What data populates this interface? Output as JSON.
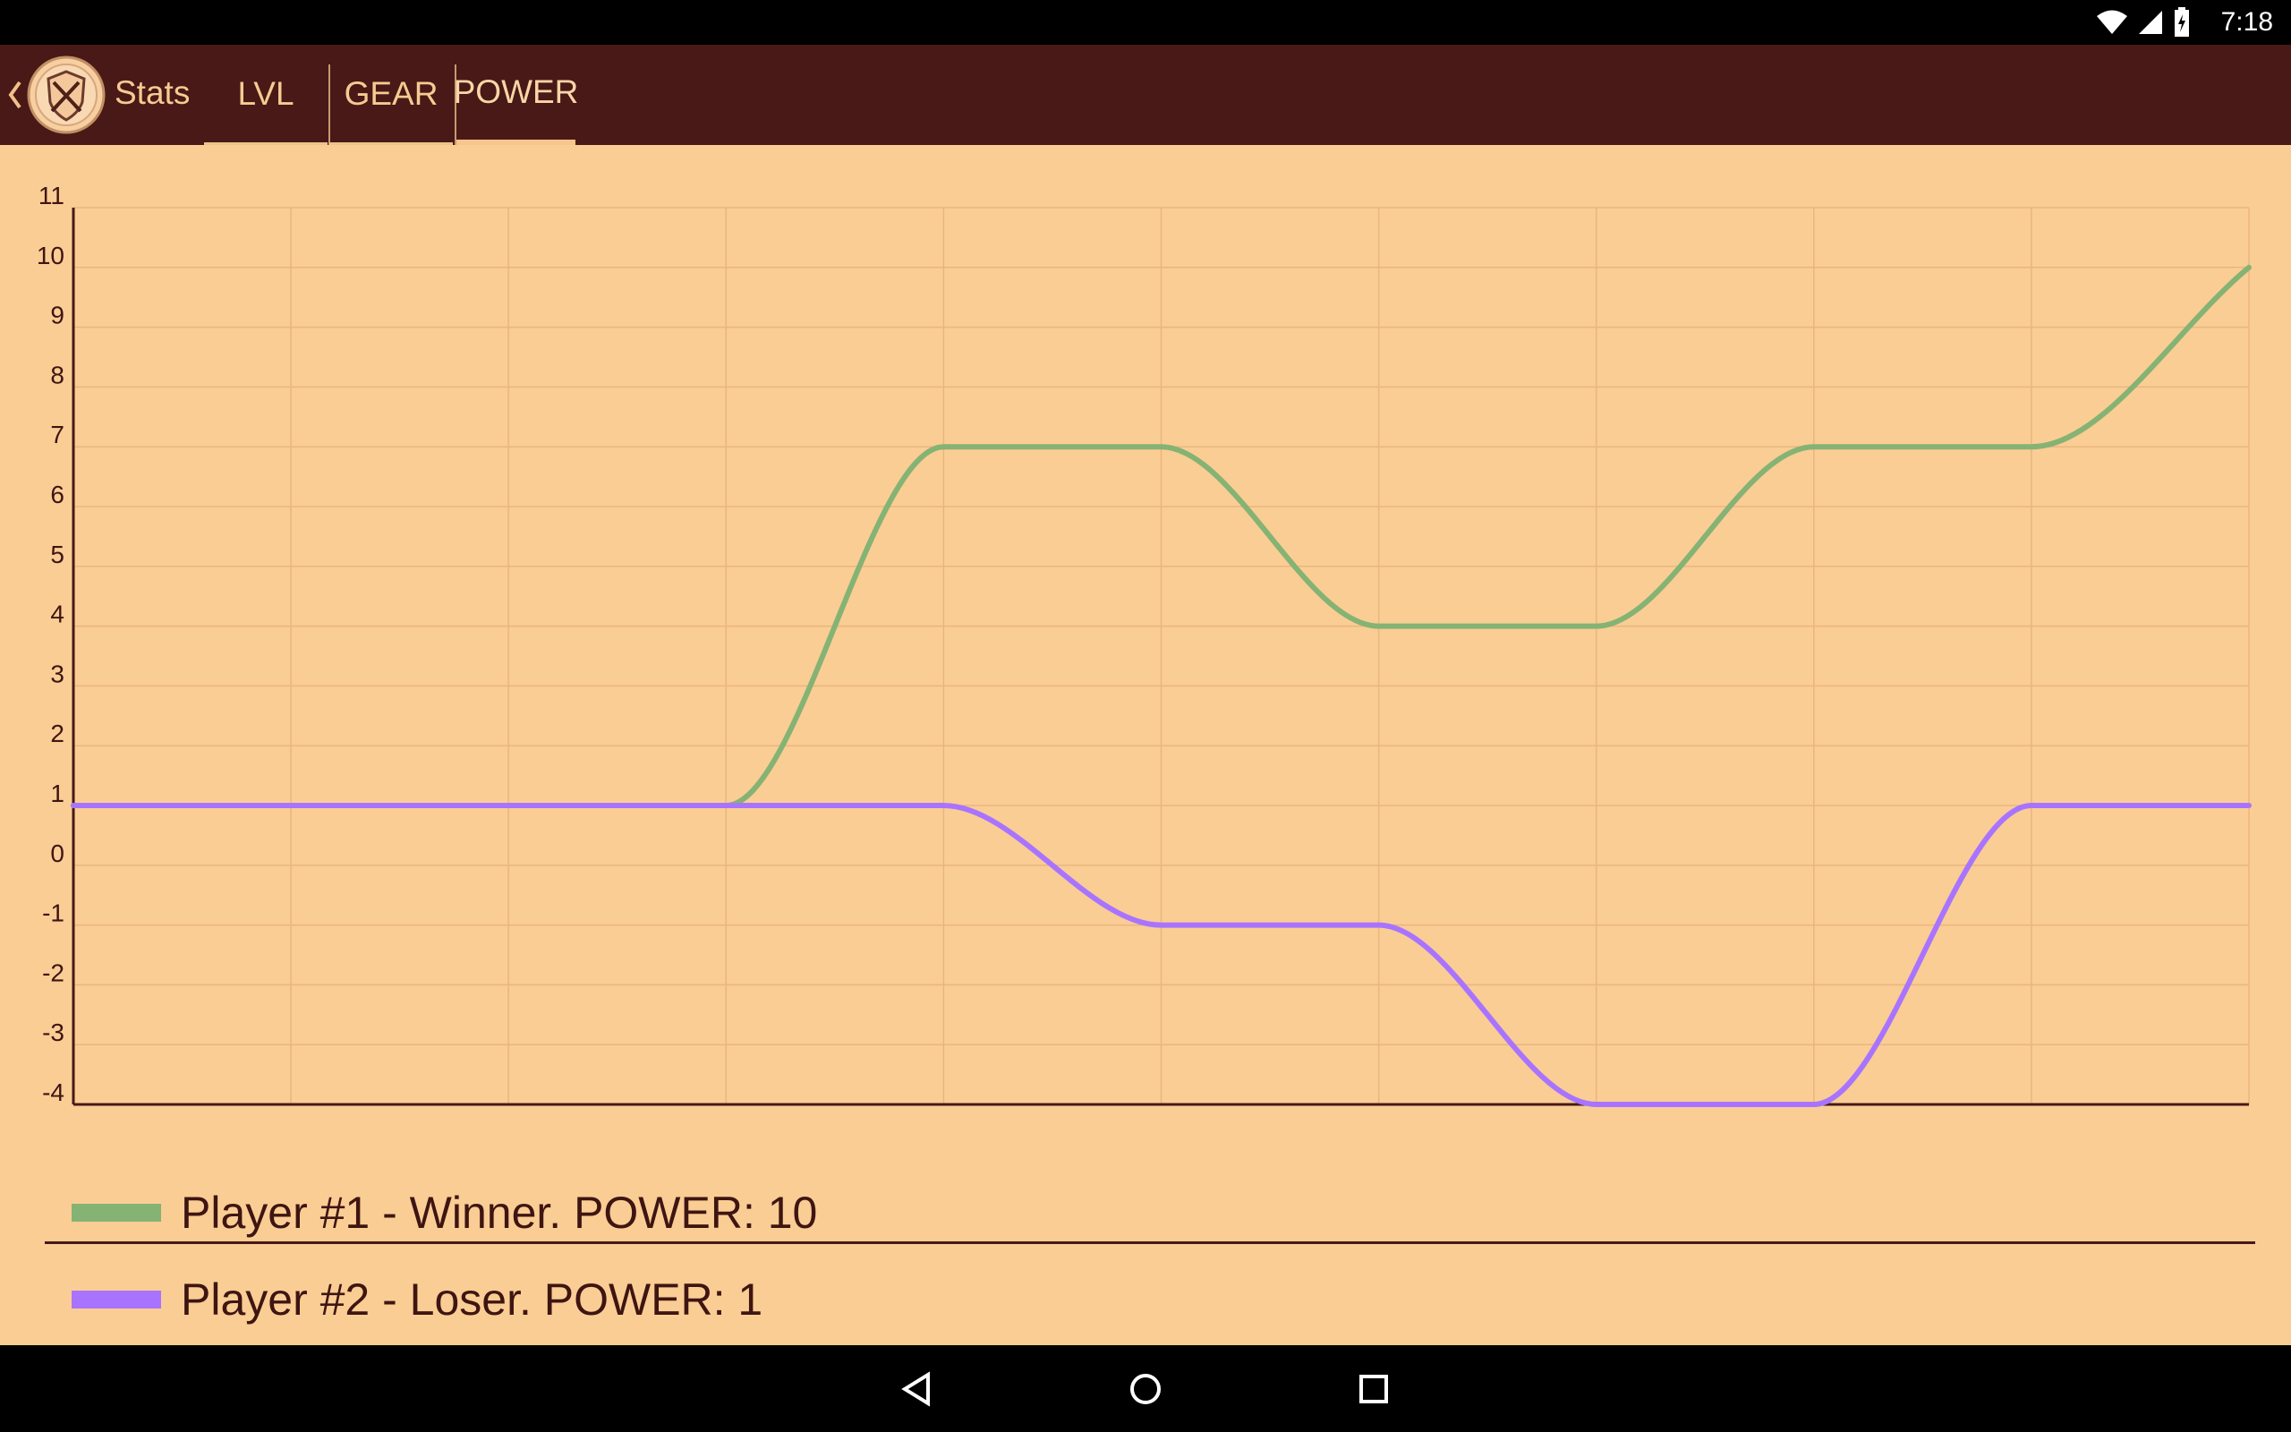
{
  "status_bar": {
    "time": "7:18",
    "icons": [
      "wifi-icon",
      "cell-signal-icon",
      "battery-charging-icon"
    ]
  },
  "app_bar": {
    "back_icon": "chevron-left-icon",
    "logo_icon": "shield-crossed-swords-icon",
    "title": "Stats",
    "tabs": [
      {
        "label": "LVL",
        "selected": false
      },
      {
        "label": "GEAR",
        "selected": false
      },
      {
        "label": "POWER",
        "selected": true
      }
    ]
  },
  "chart_data": {
    "type": "line",
    "title": "",
    "xlabel": "",
    "ylabel": "",
    "ylim": [
      -4,
      11
    ],
    "y_ticks": [
      "11",
      "10",
      "9",
      "8",
      "7",
      "6",
      "5",
      "4",
      "3",
      "2",
      "1",
      "0",
      "-1",
      "-2",
      "-3",
      "-4"
    ],
    "x": [
      0,
      1,
      2,
      3,
      4,
      5,
      6,
      7,
      8,
      9,
      10
    ],
    "grid": true,
    "legend_position": "bottom",
    "series": [
      {
        "name": "Player #1 - Winner. POWER: 10",
        "color": "#85b374",
        "values": [
          1,
          1,
          1,
          1,
          7,
          7,
          4,
          4,
          7,
          7,
          10
        ]
      },
      {
        "name": "Player #2 - Loser. POWER: 1",
        "color": "#a874ff",
        "values": [
          1,
          1,
          1,
          1,
          1,
          -1,
          -1,
          -4,
          -4,
          1,
          1
        ]
      }
    ]
  },
  "colors": {
    "app_bar": "#481916",
    "background": "#facd94",
    "accent_text": "#f6cb92",
    "axis": "#481916",
    "grid": "#e9b67f"
  },
  "nav_bar": {
    "icons": [
      "back-triangle-icon",
      "home-circle-icon",
      "recents-square-icon"
    ]
  }
}
